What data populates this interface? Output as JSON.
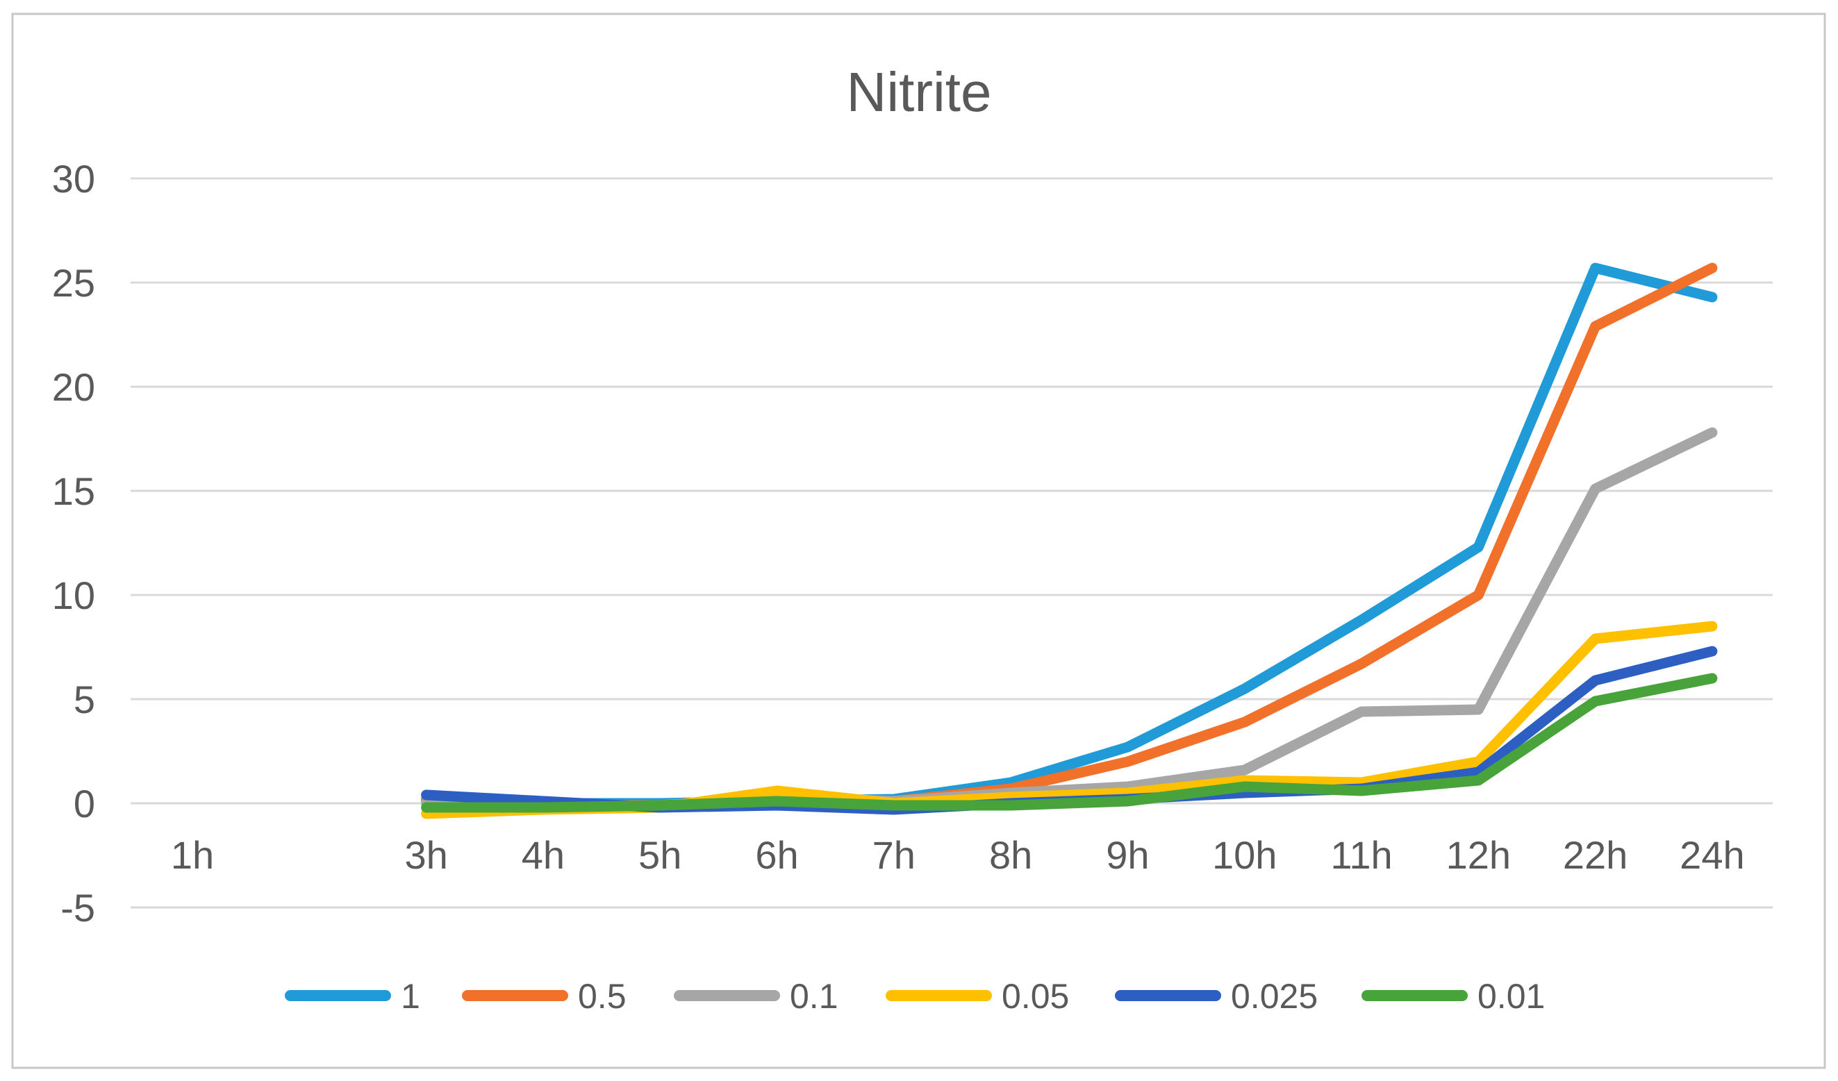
{
  "figure": {
    "background": "#FFFFFF",
    "border_color": "#C8C8C8"
  },
  "chart_data": {
    "type": "line",
    "title": "Nitrite",
    "title_color": "#595959",
    "text_color": "#595959",
    "gridline_color": "#D9D9D9",
    "grid": true,
    "legend_position": "bottom",
    "xlabel": "",
    "ylabel": "",
    "categories": [
      "1h",
      "3h",
      "4h",
      "5h",
      "6h",
      "7h",
      "8h",
      "9h",
      "10h",
      "11h",
      "12h",
      "22h",
      "24h"
    ],
    "category_slots": [
      0,
      2,
      3,
      4,
      5,
      6,
      7,
      8,
      9,
      10,
      11,
      12,
      13
    ],
    "total_slots": 14,
    "y_ticks": [
      30,
      25,
      20,
      15,
      10,
      5,
      0,
      -5
    ],
    "ylim": [
      -5,
      30
    ],
    "series": [
      {
        "name": "1",
        "color": "#219BD7",
        "values": [
          null,
          0.2,
          0.0,
          0.0,
          0.1,
          0.2,
          1.0,
          2.7,
          5.5,
          8.8,
          12.3,
          25.7,
          24.3
        ]
      },
      {
        "name": "0.5",
        "color": "#F2712A",
        "values": [
          null,
          0.1,
          -0.1,
          -0.1,
          0.0,
          0.1,
          0.7,
          2.0,
          3.9,
          6.7,
          10.0,
          22.9,
          25.7
        ]
      },
      {
        "name": "0.1",
        "color": "#A6A6A6",
        "values": [
          null,
          0.0,
          -0.2,
          -0.1,
          0.3,
          0.1,
          0.5,
          0.8,
          1.6,
          4.4,
          4.5,
          15.1,
          17.8
        ]
      },
      {
        "name": "0.05",
        "color": "#FFC000",
        "values": [
          null,
          -0.5,
          -0.3,
          -0.2,
          0.6,
          0.0,
          0.3,
          0.5,
          1.1,
          1.0,
          2.0,
          7.9,
          8.5
        ]
      },
      {
        "name": "0.025",
        "color": "#2D5FC2",
        "values": [
          null,
          0.4,
          0.1,
          -0.2,
          -0.1,
          -0.3,
          0.0,
          0.2,
          0.5,
          0.7,
          1.5,
          5.9,
          7.3
        ]
      },
      {
        "name": "0.01",
        "color": "#48A43A",
        "values": [
          null,
          -0.2,
          -0.2,
          -0.1,
          0.1,
          -0.1,
          -0.1,
          0.1,
          0.8,
          0.6,
          1.1,
          4.9,
          6.0
        ]
      }
    ]
  }
}
